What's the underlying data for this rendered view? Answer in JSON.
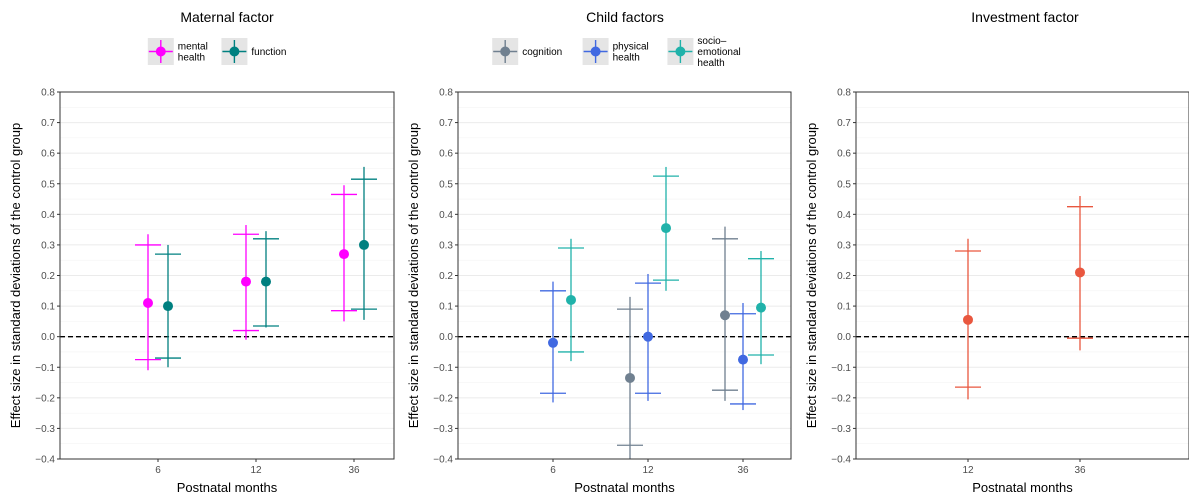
{
  "chart_data": [
    {
      "type": "scatter",
      "title": "Maternal factor",
      "xlabel": "Postnatal months",
      "ylabel": "Effect size in standard deviations of the control group",
      "categories": [
        "6",
        "12",
        "36"
      ],
      "ylim": [
        -0.4,
        0.8
      ],
      "yticks": [
        "−0.4",
        "−0.3",
        "−0.2",
        "−0.1",
        "0.0",
        "0.1",
        "0.2",
        "0.3",
        "0.4",
        "0.5",
        "0.6",
        "0.7",
        "0.8"
      ],
      "yticks_values": [
        -0.4,
        -0.3,
        -0.2,
        -0.1,
        0.0,
        0.1,
        0.2,
        0.3,
        0.4,
        0.5,
        0.6,
        0.7,
        0.8
      ],
      "reference_line": 0,
      "grid": true,
      "legend_position": "top",
      "series": [
        {
          "name": "mental health",
          "label_lines": [
            "mental",
            "health"
          ],
          "color": "#ff00ff",
          "points": [
            {
              "x": "6",
              "y": 0.11,
              "ci90": [
                -0.075,
                0.3
              ],
              "ci95": [
                -0.11,
                0.335
              ]
            },
            {
              "x": "12",
              "y": 0.18,
              "ci90": [
                0.02,
                0.335
              ],
              "ci95": [
                -0.01,
                0.365
              ]
            },
            {
              "x": "36",
              "y": 0.27,
              "ci90": [
                0.085,
                0.465
              ],
              "ci95": [
                0.05,
                0.495
              ]
            }
          ]
        },
        {
          "name": "function",
          "label_lines": [
            "function"
          ],
          "color": "#008080",
          "points": [
            {
              "x": "6",
              "y": 0.1,
              "ci90": [
                -0.07,
                0.27
              ],
              "ci95": [
                -0.1,
                0.3
              ]
            },
            {
              "x": "12",
              "y": 0.18,
              "ci90": [
                0.035,
                0.32
              ],
              "ci95": [
                0.03,
                0.345
              ]
            },
            {
              "x": "36",
              "y": 0.3,
              "ci90": [
                0.09,
                0.515
              ],
              "ci95": [
                0.055,
                0.555
              ]
            }
          ]
        }
      ]
    },
    {
      "type": "scatter",
      "title": "Child factors",
      "xlabel": "Postnatal months",
      "ylabel": "Effect size in standard deviations of the control group",
      "categories": [
        "6",
        "12",
        "36"
      ],
      "ylim": [
        -0.4,
        0.8
      ],
      "yticks": [
        "−0.4",
        "−0.3",
        "−0.2",
        "−0.1",
        "0.0",
        "0.1",
        "0.2",
        "0.3",
        "0.4",
        "0.5",
        "0.6",
        "0.7",
        "0.8"
      ],
      "yticks_values": [
        -0.4,
        -0.3,
        -0.2,
        -0.1,
        0.0,
        0.1,
        0.2,
        0.3,
        0.4,
        0.5,
        0.6,
        0.7,
        0.8
      ],
      "reference_line": 0,
      "grid": true,
      "legend_position": "top",
      "series": [
        {
          "name": "cognition",
          "label_lines": [
            "cognition"
          ],
          "color": "#708090",
          "points": [
            {
              "x": "12",
              "y": -0.135,
              "ci90": [
                -0.355,
                0.09
              ],
              "ci95": [
                -0.4,
                0.13
              ]
            },
            {
              "x": "36",
              "y": 0.07,
              "ci90": [
                -0.175,
                0.32
              ],
              "ci95": [
                -0.21,
                0.36
              ]
            }
          ]
        },
        {
          "name": "physical health",
          "label_lines": [
            "physical",
            "health"
          ],
          "color": "#4169e1",
          "points": [
            {
              "x": "6",
              "y": -0.02,
              "ci90": [
                -0.185,
                0.15
              ],
              "ci95": [
                -0.215,
                0.18
              ]
            },
            {
              "x": "12",
              "y": 0.0,
              "ci90": [
                -0.185,
                0.175
              ],
              "ci95": [
                -0.21,
                0.205
              ]
            },
            {
              "x": "36",
              "y": -0.075,
              "ci90": [
                -0.22,
                0.075
              ],
              "ci95": [
                -0.24,
                0.11
              ]
            }
          ]
        },
        {
          "name": "socio-emotional health",
          "label_lines": [
            "socio–",
            "emotional",
            "health"
          ],
          "color": "#20b2aa",
          "points": [
            {
              "x": "6",
              "y": 0.12,
              "ci90": [
                -0.05,
                0.29
              ],
              "ci95": [
                -0.08,
                0.32
              ]
            },
            {
              "x": "12",
              "y": 0.355,
              "ci90": [
                0.185,
                0.525
              ],
              "ci95": [
                0.15,
                0.555
              ]
            },
            {
              "x": "36",
              "y": 0.095,
              "ci90": [
                -0.06,
                0.255
              ],
              "ci95": [
                -0.09,
                0.28
              ]
            }
          ]
        }
      ]
    },
    {
      "type": "scatter",
      "title": "Investment factor",
      "xlabel": "Postnatal months",
      "ylabel": "Effect size in standard deviations of the control group",
      "categories": [
        "12",
        "36"
      ],
      "ylim": [
        -0.4,
        0.8
      ],
      "yticks": [
        "−0.4",
        "−0.3",
        "−0.2",
        "−0.1",
        "0.0",
        "0.1",
        "0.2",
        "0.3",
        "0.4",
        "0.5",
        "0.6",
        "0.7",
        "0.8"
      ],
      "yticks_values": [
        -0.4,
        -0.3,
        -0.2,
        -0.1,
        0.0,
        0.1,
        0.2,
        0.3,
        0.4,
        0.5,
        0.6,
        0.7,
        0.8
      ],
      "reference_line": 0,
      "grid": true,
      "legend_position": "none",
      "series": [
        {
          "color": "#e9573f",
          "points": [
            {
              "x": "12",
              "y": 0.055,
              "ci90": [
                -0.165,
                0.28
              ],
              "ci95": [
                -0.205,
                0.32
              ]
            },
            {
              "x": "36",
              "y": 0.21,
              "ci90": [
                -0.005,
                0.425
              ],
              "ci95": [
                -0.045,
                0.46
              ]
            }
          ]
        }
      ]
    }
  ]
}
